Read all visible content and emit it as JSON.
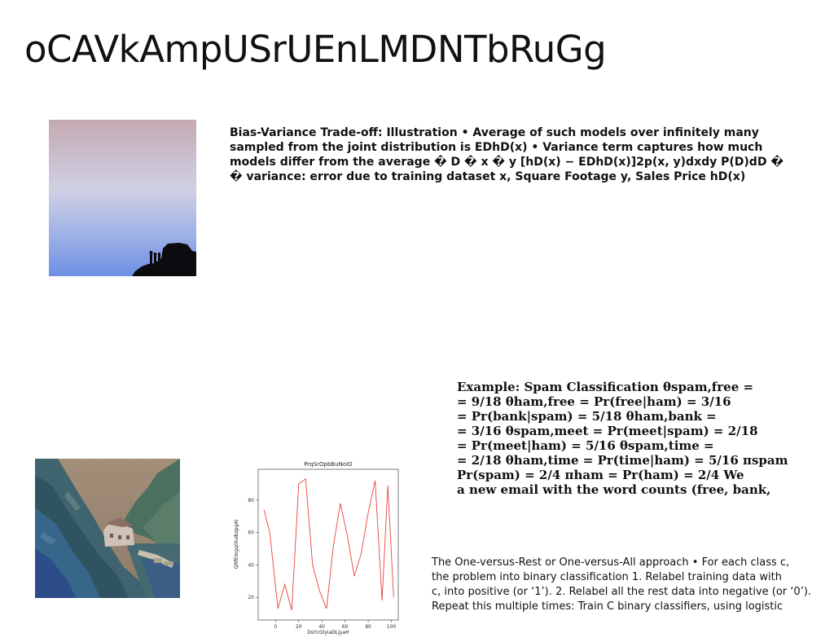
{
  "slide": {
    "title": "oCAVkAmpUSrUEnLMDNTbRuGg"
  },
  "bias_variance": {
    "text": "Bias-Variance Trade-off: Illustration • Average of such models over infinitely many sampled from the joint distribution is EDhD(x) • Variance term captures how much models differ from the average � D � x � y [hD(x) − EDhD(x)]2p(x, y)dxdy P(D)dD � � variance: error due to training dataset x, Square Footage y, Sales Price hD(x)"
  },
  "spam_example": {
    "lines": [
      "Example: Spam Classification θspam,free =",
      "= 9/18 θham,free = Pr(free|ham) = 3/16",
      "= Pr(bank|spam) = 5/18 θham,bank =",
      "= 3/16 θspam,meet = Pr(meet|spam) = 2/18",
      "= Pr(meet|ham) = 5/16 θspam,time =",
      "= 2/18 θham,time = Pr(time|ham) = 5/16 πspam",
      "Pr(spam) = 2/4 πham = Pr(ham) = 2/4 We",
      "a new email with the word counts (free, bank,"
    ]
  },
  "one_vs_rest": {
    "lines": [
      "The One-versus-Rest or One-versus-All approach • For each class c,",
      "the problem into binary classification 1. Relabel training data with",
      "c, into positive (or ‘1’). 2. Relabel all the rest data into negative (or ‘0’).",
      "Repeat this multiple times: Train C binary classifiers, using logistic"
    ]
  },
  "images": {
    "sky": "sky-silhouette-photo",
    "valley": "valley-building-photo"
  },
  "chart_data": {
    "type": "line",
    "title": "PrqSrOpbBuNolO",
    "xlabel": "DsYcGlyiaDLjyaH",
    "ylabel": "QRfEmgqOiuIbzpgAl",
    "x": [
      -10,
      -3,
      3,
      10,
      17,
      24,
      31,
      38,
      45,
      52,
      59,
      66,
      73,
      80,
      87,
      94,
      101
    ],
    "series": [
      {
        "values": [
          74,
          60,
          13,
          28,
          12,
          90,
          93,
          40,
          24,
          13,
          52,
          78,
          58,
          33,
          47,
          72,
          92,
          18,
          89,
          20
        ],
        "x": [
          -10,
          -5,
          2,
          8,
          14,
          20,
          26,
          32,
          38,
          44,
          50,
          56,
          62,
          68,
          74,
          80,
          86,
          92,
          97,
          102
        ],
        "color": "#e8423a"
      }
    ],
    "xlim": [
      -15,
      106
    ],
    "ylim": [
      6,
      99
    ],
    "xticks": [
      0,
      20,
      40,
      60,
      80,
      100
    ],
    "yticks": [
      20,
      40,
      60,
      80
    ],
    "grid": false
  }
}
